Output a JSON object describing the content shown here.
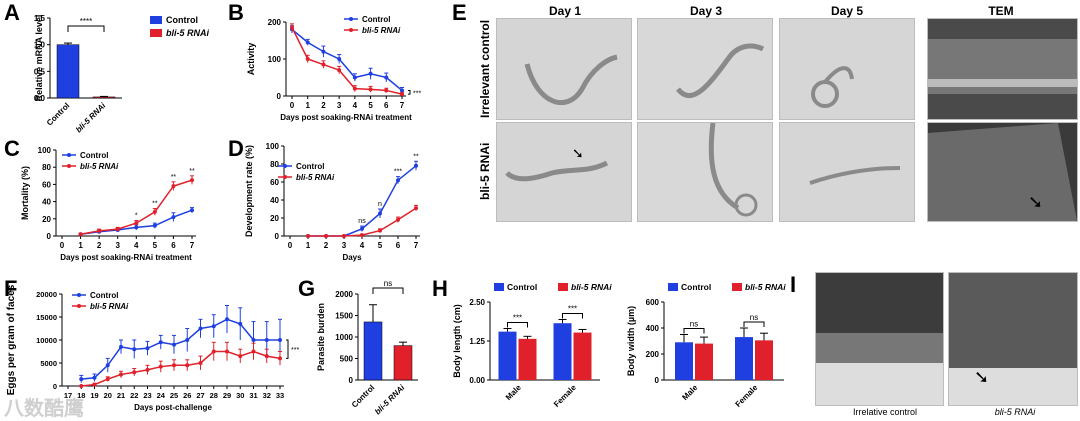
{
  "panel_labels": {
    "A": "A",
    "B": "B",
    "C": "C",
    "D": "D",
    "E": "E",
    "F": "F",
    "G": "G",
    "H": "H",
    "I": "I"
  },
  "colors": {
    "control": "#1f3fe0",
    "rnai": "#e0202a"
  },
  "panel_e": {
    "headers": [
      "Day 1",
      "Day 3",
      "Day 5",
      "TEM"
    ],
    "row_labels": [
      "Irrelevant control",
      "bli-5 RNAi"
    ]
  },
  "panel_i": {
    "captions": [
      "Irrelative control",
      "bli-5 RNAi"
    ]
  },
  "watermark": "八数酷鹰",
  "chart_data": [
    {
      "id": "A",
      "type": "bar",
      "ylabel": "Relative mRNA level",
      "categories": [
        "Control",
        "bli-5 RNAi"
      ],
      "values": [
        1.0,
        0.02
      ],
      "errors": [
        0.03,
        0.01
      ],
      "ylim": [
        0,
        1.5
      ],
      "yticks": [
        "0.0",
        "0.5",
        "1.0",
        "1.5"
      ],
      "significance": "****",
      "legend": [
        "Control",
        "bli-5 RNAi"
      ]
    },
    {
      "id": "B",
      "type": "line",
      "ylabel": "Activity",
      "xlabel": "Days post soaking-RNAi treatment",
      "x": [
        0,
        1,
        2,
        3,
        4,
        5,
        6,
        7
      ],
      "xticks": [
        "0",
        "1",
        "2",
        "3",
        "4",
        "5",
        "6",
        "7"
      ],
      "yticks": [
        "0",
        "100",
        "200"
      ],
      "ylim": [
        0,
        200
      ],
      "series": [
        {
          "name": "Control",
          "values": [
            180,
            145,
            120,
            100,
            50,
            60,
            50,
            15
          ],
          "errors": [
            10,
            8,
            15,
            12,
            10,
            15,
            12,
            8
          ]
        },
        {
          "name": "bli-5 RNAi",
          "values": [
            185,
            100,
            85,
            70,
            20,
            18,
            15,
            5
          ],
          "errors": [
            10,
            10,
            10,
            10,
            8,
            8,
            6,
            4
          ]
        }
      ],
      "significance": "***"
    },
    {
      "id": "C",
      "type": "line",
      "ylabel": "Mortality (%)",
      "xlabel": "Days post soaking-RNAi treatment",
      "x": [
        0,
        1,
        2,
        3,
        4,
        5,
        6,
        7
      ],
      "xticks": [
        "0",
        "1",
        "2",
        "3",
        "4",
        "5",
        "6",
        "7"
      ],
      "yticks": [
        "0",
        "20",
        "40",
        "60",
        "80",
        "100"
      ],
      "ylim": [
        0,
        100
      ],
      "series": [
        {
          "name": "Control",
          "values": [
            null,
            2,
            5,
            7,
            10,
            12,
            22,
            30
          ],
          "errors": [
            null,
            1,
            2,
            2,
            3,
            3,
            5,
            3
          ]
        },
        {
          "name": "bli-5 RNAi",
          "values": [
            null,
            2,
            6,
            8,
            15,
            28,
            58,
            65
          ],
          "errors": [
            null,
            1,
            2,
            2,
            3,
            4,
            5,
            5
          ]
        }
      ],
      "annotations": [
        {
          "x": 4,
          "text": "*"
        },
        {
          "x": 5,
          "text": "**"
        },
        {
          "x": 6,
          "text": "**"
        },
        {
          "x": 7,
          "text": "**"
        }
      ]
    },
    {
      "id": "D",
      "type": "line",
      "ylabel": "Development rate (%)",
      "xlabel": "Days",
      "x": [
        0,
        1,
        2,
        3,
        4,
        5,
        6,
        7
      ],
      "xticks": [
        "0",
        "1",
        "2",
        "3",
        "4",
        "5",
        "6",
        "7"
      ],
      "yticks": [
        "0",
        "20",
        "40",
        "60",
        "80",
        "100"
      ],
      "ylim": [
        0,
        100
      ],
      "series": [
        {
          "name": "Control",
          "values": [
            null,
            0,
            0,
            0,
            8,
            25,
            62,
            78
          ],
          "errors": [
            null,
            0,
            0,
            0,
            3,
            5,
            4,
            5
          ]
        },
        {
          "name": "bli-5 RNAi",
          "values": [
            null,
            0,
            0,
            0,
            1,
            6,
            18,
            31
          ],
          "errors": [
            null,
            0,
            0,
            0,
            1,
            2,
            3,
            3
          ]
        }
      ],
      "annotations": [
        {
          "x": 4,
          "text": "ns"
        },
        {
          "x": 5,
          "text": "n"
        },
        {
          "x": 6,
          "text": "***"
        },
        {
          "x": 7,
          "text": "**"
        }
      ]
    },
    {
      "id": "F",
      "type": "line",
      "ylabel": "Eggs per gram of faces",
      "xlabel": "Days post-challenge",
      "x": [
        17,
        18,
        19,
        20,
        21,
        22,
        23,
        24,
        25,
        26,
        27,
        28,
        29,
        30,
        31,
        32,
        33
      ],
      "xticks": [
        "17",
        "18",
        "19",
        "20",
        "21",
        "22",
        "23",
        "24",
        "25",
        "26",
        "27",
        "28",
        "29",
        "30",
        "31",
        "32",
        "33"
      ],
      "yticks": [
        "0",
        "5000",
        "10000",
        "15000",
        "20000"
      ],
      "ylim": [
        0,
        20000
      ],
      "series": [
        {
          "name": "Control",
          "values": [
            null,
            1500,
            1800,
            4500,
            8500,
            8000,
            8200,
            9500,
            9000,
            10000,
            12500,
            13000,
            14500,
            13500,
            10000,
            10000,
            10000
          ],
          "errors": [
            null,
            800,
            800,
            1500,
            1500,
            2000,
            1500,
            1500,
            2000,
            2500,
            2000,
            2500,
            3000,
            3500,
            4000,
            4000,
            4500
          ]
        },
        {
          "name": "bli-5 RNAi",
          "values": [
            null,
            0,
            300,
            1500,
            2500,
            3000,
            3500,
            4200,
            4500,
            4500,
            5000,
            7500,
            7500,
            6500,
            7500,
            6500,
            6000
          ],
          "errors": [
            null,
            0,
            300,
            500,
            700,
            800,
            1000,
            1200,
            1200,
            1200,
            1500,
            2000,
            2000,
            1500,
            1800,
            1500,
            1500
          ]
        }
      ],
      "significance": "***"
    },
    {
      "id": "G",
      "type": "bar",
      "ylabel": "Parasite burden",
      "categories": [
        "Control",
        "bli-5 RNAi"
      ],
      "values": [
        1350,
        800
      ],
      "errors": [
        400,
        80
      ],
      "ylim": [
        0,
        2000
      ],
      "yticks": [
        "0",
        "500",
        "1000",
        "1500",
        "2000"
      ],
      "significance": "ns"
    },
    {
      "id": "H1",
      "type": "bar",
      "ylabel": "Body length (cm)",
      "categories": [
        "Male",
        "Female"
      ],
      "series": [
        {
          "name": "Control",
          "values": [
            1.55,
            1.82
          ],
          "errors": [
            0.1,
            0.12
          ]
        },
        {
          "name": "bli-5 RNAi",
          "values": [
            1.32,
            1.52
          ],
          "errors": [
            0.08,
            0.1
          ]
        }
      ],
      "ylim": [
        0,
        2.5
      ],
      "yticks": [
        "0.00",
        "1.25",
        "2.50"
      ],
      "significance": [
        "***",
        "***"
      ]
    },
    {
      "id": "H2",
      "type": "bar",
      "ylabel": "Body width (µm)",
      "categories": [
        "Male",
        "Female"
      ],
      "series": [
        {
          "name": "Control",
          "values": [
            290,
            330
          ],
          "errors": [
            60,
            70
          ]
        },
        {
          "name": "bli-5 RNAi",
          "values": [
            280,
            305
          ],
          "errors": [
            50,
            55
          ]
        }
      ],
      "ylim": [
        0,
        600
      ],
      "yticks": [
        "0",
        "200",
        "400",
        "600"
      ],
      "significance": [
        "ns",
        "ns"
      ]
    }
  ]
}
